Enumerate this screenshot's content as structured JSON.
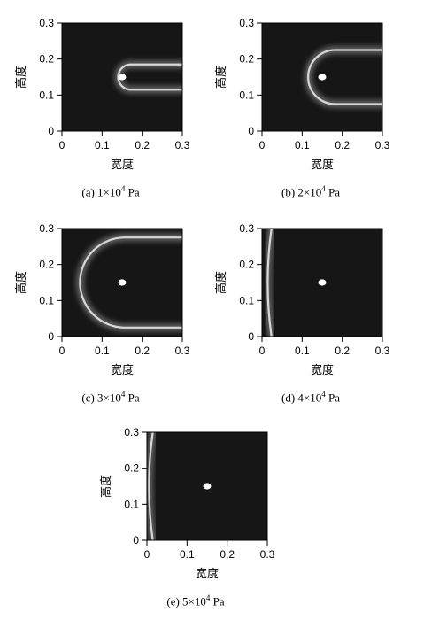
{
  "chart_data": [
    {
      "type": "heatmap",
      "panel": "a",
      "caption_prefix": "(a) 1×10",
      "caption_exp": "4",
      "caption_unit": " Pa",
      "xlabel": "宽度",
      "ylabel": "高度",
      "xlim": [
        0,
        0.3
      ],
      "ylim": [
        0,
        0.3
      ],
      "xticks": [
        "0",
        "0.1",
        "0.2",
        "0.3"
      ],
      "yticks": [
        "0",
        "0.1",
        "0.2",
        "0.3"
      ],
      "source": {
        "x": 0.15,
        "y": 0.15
      },
      "front_x": 0.14,
      "front_halfwidth": 0.035
    },
    {
      "type": "heatmap",
      "panel": "b",
      "caption_prefix": "(b) 2×10",
      "caption_exp": "4",
      "caption_unit": " Pa",
      "xlabel": "宽度",
      "ylabel": "高度",
      "xlim": [
        0,
        0.3
      ],
      "ylim": [
        0,
        0.3
      ],
      "xticks": [
        "0",
        "0.1",
        "0.2",
        "0.3"
      ],
      "yticks": [
        "0",
        "0.1",
        "0.2",
        "0.3"
      ],
      "source": {
        "x": 0.15,
        "y": 0.15
      },
      "front_x": 0.115,
      "front_halfwidth": 0.075
    },
    {
      "type": "heatmap",
      "panel": "c",
      "caption_prefix": "(c) 3×10",
      "caption_exp": "4",
      "caption_unit": " Pa",
      "xlabel": "宽度",
      "ylabel": "高度",
      "xlim": [
        0,
        0.3
      ],
      "ylim": [
        0,
        0.3
      ],
      "xticks": [
        "0",
        "0.1",
        "0.2",
        "0.3"
      ],
      "yticks": [
        "0",
        "0.1",
        "0.2",
        "0.3"
      ],
      "source": {
        "x": 0.15,
        "y": 0.15
      },
      "front_x": 0.045,
      "front_halfwidth": 0.125
    },
    {
      "type": "heatmap",
      "panel": "d",
      "caption_prefix": "(d) 4×10",
      "caption_exp": "4",
      "caption_unit": " Pa",
      "xlabel": "宽度",
      "ylabel": "高度",
      "xlim": [
        0,
        0.3
      ],
      "ylim": [
        0,
        0.3
      ],
      "xticks": [
        "0",
        "0.1",
        "0.2",
        "0.3"
      ],
      "yticks": [
        "0",
        "0.1",
        "0.2",
        "0.3"
      ],
      "source": {
        "x": 0.15,
        "y": 0.15
      },
      "front_x": 0.012,
      "front_halfwidth": 0.3
    },
    {
      "type": "heatmap",
      "panel": "e",
      "caption_prefix": "(e) 5×10",
      "caption_exp": "4",
      "caption_unit": " Pa",
      "xlabel": "宽度",
      "ylabel": "高度",
      "xlim": [
        0,
        0.3
      ],
      "ylim": [
        0,
        0.3
      ],
      "xticks": [
        "0",
        "0.1",
        "0.2",
        "0.3"
      ],
      "yticks": [
        "0",
        "0.1",
        "0.2",
        "0.3"
      ],
      "source": {
        "x": 0.15,
        "y": 0.15
      },
      "front_x": 0.003,
      "front_halfwidth": 0.3
    }
  ],
  "colors": {
    "background": "#161616",
    "front": "#e6e6e6",
    "source": "#ffffff",
    "axis": "#000000"
  }
}
